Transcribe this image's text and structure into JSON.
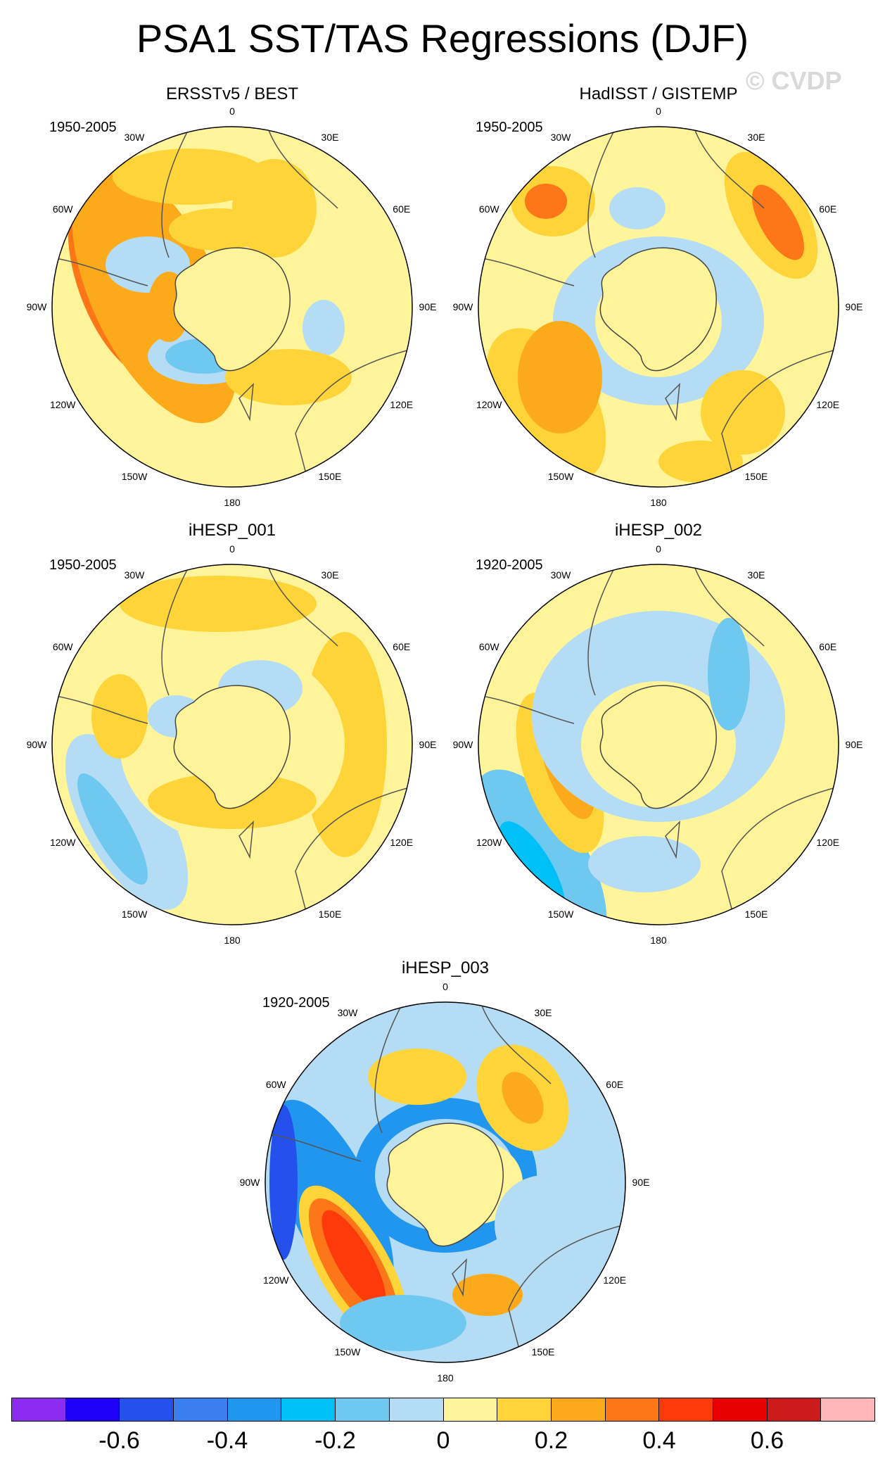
{
  "title": "PSA1 SST/TAS Regressions (DJF)",
  "watermark": "© CVDP",
  "lon_labels": [
    "0",
    "30E",
    "60E",
    "90E",
    "120E",
    "150E",
    "180",
    "150W",
    "120W",
    "90W",
    "60W",
    "30W"
  ],
  "panels": [
    {
      "title": "ERSSTv5 / BEST",
      "period": "1950-2005"
    },
    {
      "title": "HadISST / GISTEMP",
      "period": "1950-2005"
    },
    {
      "title": "iHESP_001",
      "period": "1950-2005"
    },
    {
      "title": "iHESP_002",
      "period": "1920-2005"
    },
    {
      "title": "iHESP_003",
      "period": "1920-2005"
    }
  ],
  "colorbar": {
    "colors": [
      "#8b2cf0",
      "#1e00f7",
      "#2450ec",
      "#3a7ef0",
      "#2196ee",
      "#00c0f8",
      "#6ec8ef",
      "#b4dcf4",
      "#fff49a",
      "#fed438",
      "#fdaa1a",
      "#fd7718",
      "#ff3a0a",
      "#e80000",
      "#cc1b1b",
      "#ffb6b6"
    ],
    "labels": [
      "-0.6",
      "-0.4",
      "-0.2",
      "0",
      "0.2",
      "0.4",
      "0.6"
    ]
  }
}
